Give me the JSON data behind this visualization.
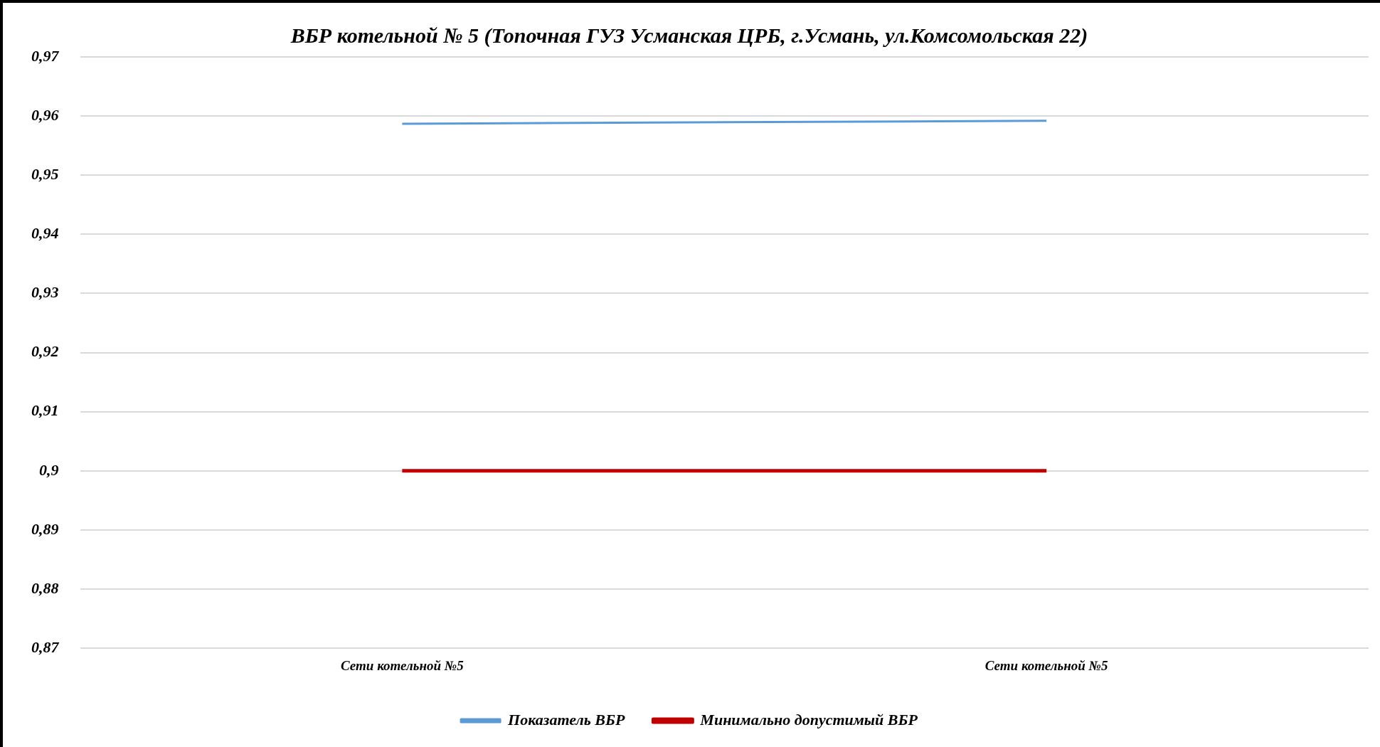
{
  "chart_data": {
    "type": "line",
    "title": "ВБР котельной № 5 (Топочная ГУЗ Усманская ЦРБ, г.Усмань, ул.Комсомольская 22)",
    "categories": [
      "Сети котельной №5",
      "Сети котельной №5"
    ],
    "series": [
      {
        "name": "Показатель ВБР",
        "color": "#5b9bd5",
        "values": [
          0.9587,
          0.9592
        ]
      },
      {
        "name": "Минимально допустимый ВБР",
        "color": "#c00000",
        "values": [
          0.9,
          0.9
        ]
      }
    ],
    "ylim": [
      0.87,
      0.97
    ],
    "yticks": [
      {
        "value": 0.87,
        "label": "0,87"
      },
      {
        "value": 0.88,
        "label": "0,88"
      },
      {
        "value": 0.89,
        "label": "0,89"
      },
      {
        "value": 0.9,
        "label": "0,9"
      },
      {
        "value": 0.91,
        "label": "0,91"
      },
      {
        "value": 0.92,
        "label": "0,92"
      },
      {
        "value": 0.93,
        "label": "0,93"
      },
      {
        "value": 0.94,
        "label": "0,94"
      },
      {
        "value": 0.95,
        "label": "0,95"
      },
      {
        "value": 0.96,
        "label": "0,96"
      },
      {
        "value": 0.97,
        "label": "0,97"
      }
    ],
    "grid": "y",
    "legend": "bottom",
    "marker": "none",
    "line_style": "solid"
  }
}
